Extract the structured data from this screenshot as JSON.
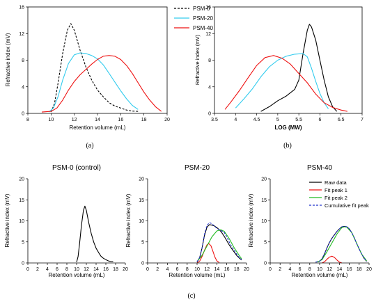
{
  "figure": {
    "panel_labels": [
      "(a)",
      "(b)",
      "(c)"
    ],
    "colors": {
      "psm0": "#000000",
      "psm20": "#33ccee",
      "psm40": "#ee1111",
      "raw": "#000000",
      "fit1": "#ee1111",
      "fit2": "#22bb22",
      "cumulative": "#2233cc"
    }
  },
  "chart_data": [
    {
      "type": "line",
      "panel": "(a)",
      "title": "",
      "xlabel": "Retention volume (mL)",
      "ylabel": "Refractive index (mV)",
      "xlim": [
        8,
        20
      ],
      "ylim": [
        0,
        16
      ],
      "xticks": [
        8,
        10,
        12,
        14,
        16,
        18,
        20
      ],
      "yticks": [
        0,
        4,
        8,
        12,
        16
      ],
      "legend_position": "top-right",
      "series": [
        {
          "name": "PSM-0",
          "style": "dashed",
          "color": "#000000",
          "x": [
            10.0,
            10.3,
            10.6,
            11.0,
            11.4,
            11.7,
            12.0,
            12.5,
            13.0,
            13.5,
            14.0,
            14.5,
            15.0,
            15.5,
            16.0,
            16.5,
            17.0,
            17.5
          ],
          "y": [
            0.2,
            1.5,
            4.5,
            9.0,
            12.5,
            13.5,
            12.5,
            9.5,
            7.0,
            5.0,
            3.5,
            2.5,
            1.6,
            1.1,
            0.8,
            0.5,
            0.35,
            0.3
          ]
        },
        {
          "name": "PSM-20",
          "style": "solid",
          "color": "#33ccee",
          "x": [
            9.8,
            10.2,
            10.6,
            11.0,
            11.5,
            12.0,
            12.5,
            13.0,
            13.5,
            14.0,
            14.5,
            15.0,
            15.5,
            16.0,
            16.5,
            17.0,
            17.5
          ],
          "y": [
            0.2,
            0.8,
            2.5,
            5.0,
            7.5,
            8.8,
            9.1,
            9.0,
            8.7,
            8.2,
            7.3,
            6.0,
            4.7,
            3.4,
            2.2,
            1.2,
            0.6
          ]
        },
        {
          "name": "PSM-40",
          "style": "solid",
          "color": "#ee1111",
          "x": [
            9.2,
            10.0,
            10.5,
            11.0,
            11.5,
            12.0,
            12.5,
            13.0,
            13.5,
            14.0,
            14.5,
            15.0,
            15.5,
            16.0,
            16.5,
            17.0,
            17.5,
            18.0,
            18.5,
            19.0,
            19.5
          ],
          "y": [
            0.2,
            0.3,
            0.8,
            2.0,
            3.5,
            4.8,
            5.8,
            6.6,
            7.4,
            8.1,
            8.6,
            8.7,
            8.6,
            8.1,
            7.2,
            6.0,
            4.6,
            3.2,
            2.0,
            1.0,
            0.3
          ]
        }
      ]
    },
    {
      "type": "line",
      "panel": "(b)",
      "title": "",
      "xlabel": "LOG (MW)",
      "ylabel": "Refractive index (mV)",
      "xlim": [
        3.5,
        7.0
      ],
      "ylim": [
        0,
        16
      ],
      "xticks": [
        3.5,
        4.0,
        4.5,
        5.0,
        5.5,
        6.0,
        6.5,
        7.0
      ],
      "yticks": [
        0,
        4,
        8,
        12,
        16
      ],
      "series": [
        {
          "name": "PSM-0",
          "color": "#000000",
          "x": [
            4.6,
            4.8,
            5.0,
            5.2,
            5.4,
            5.5,
            5.6,
            5.7,
            5.75,
            5.8,
            5.9,
            6.0,
            6.1,
            6.2,
            6.3,
            6.4
          ],
          "y": [
            0.3,
            1.0,
            1.9,
            2.6,
            3.6,
            5.0,
            9.0,
            12.5,
            13.4,
            13.0,
            11.0,
            8.0,
            5.0,
            2.5,
            1.0,
            0.3
          ]
        },
        {
          "name": "PSM-20",
          "color": "#33ccee",
          "x": [
            4.0,
            4.2,
            4.4,
            4.6,
            4.8,
            5.0,
            5.2,
            5.4,
            5.6,
            5.7,
            5.8,
            5.9,
            6.0,
            6.1,
            6.2
          ],
          "y": [
            0.8,
            2.2,
            3.7,
            5.5,
            7.0,
            8.0,
            8.6,
            8.9,
            9.0,
            8.5,
            6.8,
            4.8,
            3.0,
            1.6,
            0.7
          ]
        },
        {
          "name": "PSM-40",
          "color": "#ee1111",
          "x": [
            3.75,
            3.9,
            4.1,
            4.3,
            4.5,
            4.7,
            4.9,
            5.1,
            5.3,
            5.5,
            5.7,
            5.9,
            6.1,
            6.3,
            6.5,
            6.65
          ],
          "y": [
            0.6,
            1.8,
            3.5,
            5.4,
            7.2,
            8.4,
            8.7,
            8.3,
            7.4,
            6.0,
            4.6,
            2.9,
            1.6,
            0.9,
            0.5,
            0.3
          ]
        }
      ]
    },
    {
      "type": "line",
      "panel": "(c)",
      "title": "PSM-0 (control)",
      "xlabel": "Retention volume (mL)",
      "ylabel": "Refractive index (mV)",
      "xlim": [
        0,
        20
      ],
      "ylim": [
        0,
        20
      ],
      "xticks": [
        0,
        2,
        4,
        6,
        8,
        10,
        12,
        14,
        16,
        18,
        20
      ],
      "yticks": [
        0,
        5,
        10,
        15,
        20
      ],
      "series": [
        {
          "name": "Raw data",
          "color": "#000000",
          "x": [
            10.0,
            10.3,
            10.6,
            11.0,
            11.4,
            11.7,
            12.0,
            12.5,
            13.0,
            13.5,
            14.0,
            14.5,
            15.0,
            15.5,
            16.0,
            16.5,
            17.0,
            17.5
          ],
          "y": [
            0.2,
            1.5,
            4.5,
            9.0,
            12.5,
            13.5,
            12.5,
            9.5,
            7.0,
            5.0,
            3.5,
            2.5,
            1.6,
            1.1,
            0.8,
            0.5,
            0.35,
            0.3
          ]
        }
      ]
    },
    {
      "type": "line",
      "panel": "(c)",
      "title": "PSM-20",
      "xlabel": "Retention volume (mL)",
      "ylabel": "Refractive index (mV)",
      "xlim": [
        0,
        20
      ],
      "ylim": [
        0,
        20
      ],
      "xticks": [
        0,
        2,
        4,
        6,
        8,
        10,
        12,
        14,
        16,
        18,
        20
      ],
      "yticks": [
        0,
        5,
        10,
        15,
        20
      ],
      "series": [
        {
          "name": "Raw data",
          "color": "#000000",
          "x": [
            10.0,
            10.5,
            11.0,
            11.5,
            12.0,
            12.5,
            13.0,
            13.5,
            14.0,
            14.5,
            15.0,
            15.5,
            16.0,
            16.5,
            17.0,
            17.5,
            18.0,
            18.5,
            19.0
          ],
          "y": [
            0.2,
            1.2,
            3.5,
            6.5,
            8.5,
            9.1,
            9.0,
            8.8,
            8.4,
            7.9,
            7.2,
            6.3,
            5.3,
            4.3,
            3.4,
            2.6,
            1.8,
            1.2,
            0.7
          ]
        },
        {
          "name": "Fit peak 1",
          "color": "#ee1111",
          "x": [
            10.0,
            10.5,
            11.0,
            11.5,
            12.0,
            12.4,
            12.8,
            13.2,
            13.6,
            14.0,
            14.5
          ],
          "y": [
            0.0,
            0.4,
            1.5,
            3.0,
            4.3,
            4.6,
            4.1,
            2.8,
            1.4,
            0.5,
            0.1
          ]
        },
        {
          "name": "Fit peak 2",
          "color": "#22bb22",
          "x": [
            10.0,
            11.0,
            12.0,
            13.0,
            14.0,
            14.8,
            15.5,
            16.5,
            17.5,
            18.5,
            19.0
          ],
          "y": [
            0.3,
            1.8,
            4.0,
            6.2,
            7.6,
            7.9,
            7.5,
            5.8,
            3.6,
            1.8,
            1.0
          ]
        },
        {
          "name": "Cumulative fit peak",
          "color": "#2233cc",
          "x": [
            10.0,
            10.5,
            11.0,
            11.5,
            12.0,
            12.5,
            13.0,
            13.5,
            14.0,
            14.5,
            15.0,
            15.5,
            16.0,
            16.5,
            17.0,
            17.5,
            18.0,
            18.5,
            19.0
          ],
          "y": [
            0.3,
            1.3,
            3.5,
            6.8,
            8.9,
            9.6,
            9.3,
            8.8,
            8.2,
            7.9,
            7.6,
            7.2,
            6.2,
            5.0,
            3.9,
            3.0,
            2.1,
            1.3,
            0.8
          ]
        }
      ]
    },
    {
      "type": "line",
      "panel": "(c)",
      "title": "PSM-40",
      "xlabel": "Retention volume (mL)",
      "ylabel": "Refractive index (mV)",
      "xlim": [
        0,
        20
      ],
      "ylim": [
        0,
        20
      ],
      "xticks": [
        0,
        2,
        4,
        6,
        8,
        10,
        12,
        14,
        16,
        18,
        20
      ],
      "yticks": [
        0,
        5,
        10,
        15,
        20
      ],
      "legend": [
        "Raw data",
        "Fit peak 1",
        "Fit peak 2",
        "Cumulative fit peak"
      ],
      "legend_position": "top-right",
      "series": [
        {
          "name": "Raw data",
          "color": "#000000",
          "x": [
            9.2,
            10.0,
            10.5,
            11.0,
            11.5,
            12.0,
            12.5,
            13.0,
            13.5,
            14.0,
            14.5,
            15.0,
            15.5,
            16.0,
            16.5,
            17.0,
            17.5,
            18.0,
            18.5,
            19.0,
            19.5
          ],
          "y": [
            0.2,
            0.4,
            1.0,
            2.2,
            3.6,
            4.9,
            5.9,
            6.7,
            7.5,
            8.1,
            8.6,
            8.7,
            8.6,
            8.1,
            7.2,
            6.0,
            4.6,
            3.3,
            2.1,
            1.1,
            0.4
          ]
        },
        {
          "name": "Fit peak 1",
          "color": "#ee1111",
          "x": [
            10.5,
            11.0,
            11.5,
            12.0,
            12.5,
            13.0,
            13.5,
            14.0,
            14.5
          ],
          "y": [
            0.0,
            0.3,
            0.9,
            1.4,
            1.6,
            1.3,
            0.7,
            0.2,
            0.0
          ]
        },
        {
          "name": "Fit peak 2",
          "color": "#22bb22",
          "x": [
            9.5,
            10.5,
            11.5,
            12.5,
            13.5,
            14.5,
            15.0,
            15.5,
            16.5,
            17.5,
            18.5,
            19.5
          ],
          "y": [
            0.2,
            0.8,
            2.7,
            4.8,
            6.9,
            8.4,
            8.6,
            8.5,
            7.2,
            4.6,
            2.1,
            0.5
          ]
        },
        {
          "name": "Cumulative fit peak",
          "color": "#2233cc",
          "x": [
            9.2,
            10.0,
            10.5,
            11.0,
            11.5,
            12.0,
            12.5,
            13.0,
            13.5,
            14.0,
            14.5,
            15.0,
            15.5,
            16.0,
            16.5,
            17.0,
            17.5,
            18.0,
            18.5,
            19.0,
            19.5
          ],
          "y": [
            0.2,
            0.4,
            1.0,
            2.2,
            3.6,
            4.9,
            5.9,
            6.7,
            7.5,
            8.1,
            8.6,
            8.7,
            8.6,
            8.1,
            7.2,
            6.0,
            4.6,
            3.3,
            2.1,
            1.1,
            0.4
          ]
        }
      ]
    }
  ]
}
